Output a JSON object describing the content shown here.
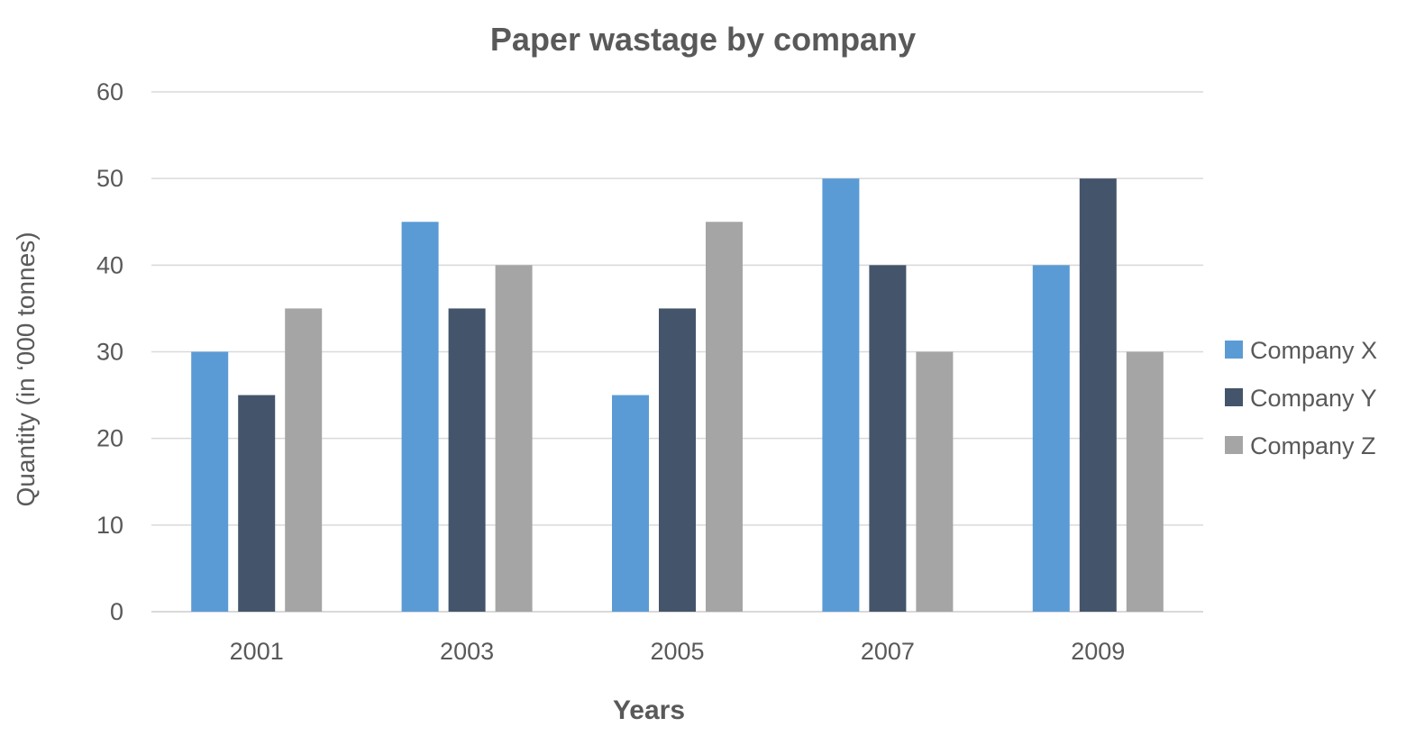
{
  "chart_data": {
    "type": "bar",
    "title": "Paper wastage by company",
    "xlabel": "Years",
    "ylabel": "Quantity (in ‘000 tonnes)",
    "categories": [
      "2001",
      "2003",
      "2005",
      "2007",
      "2009"
    ],
    "series": [
      {
        "name": "Company X",
        "color": "#5b9bd5",
        "values": [
          30,
          45,
          25,
          50,
          40
        ]
      },
      {
        "name": "Company Y",
        "color": "#44546a",
        "values": [
          25,
          35,
          35,
          40,
          50
        ]
      },
      {
        "name": "Company Z",
        "color": "#a5a5a5",
        "values": [
          35,
          40,
          45,
          30,
          30
        ]
      }
    ],
    "ylim": [
      0,
      60
    ],
    "yticks": [
      0,
      10,
      20,
      30,
      40,
      50,
      60
    ],
    "grid": true,
    "legend_position": "right"
  }
}
